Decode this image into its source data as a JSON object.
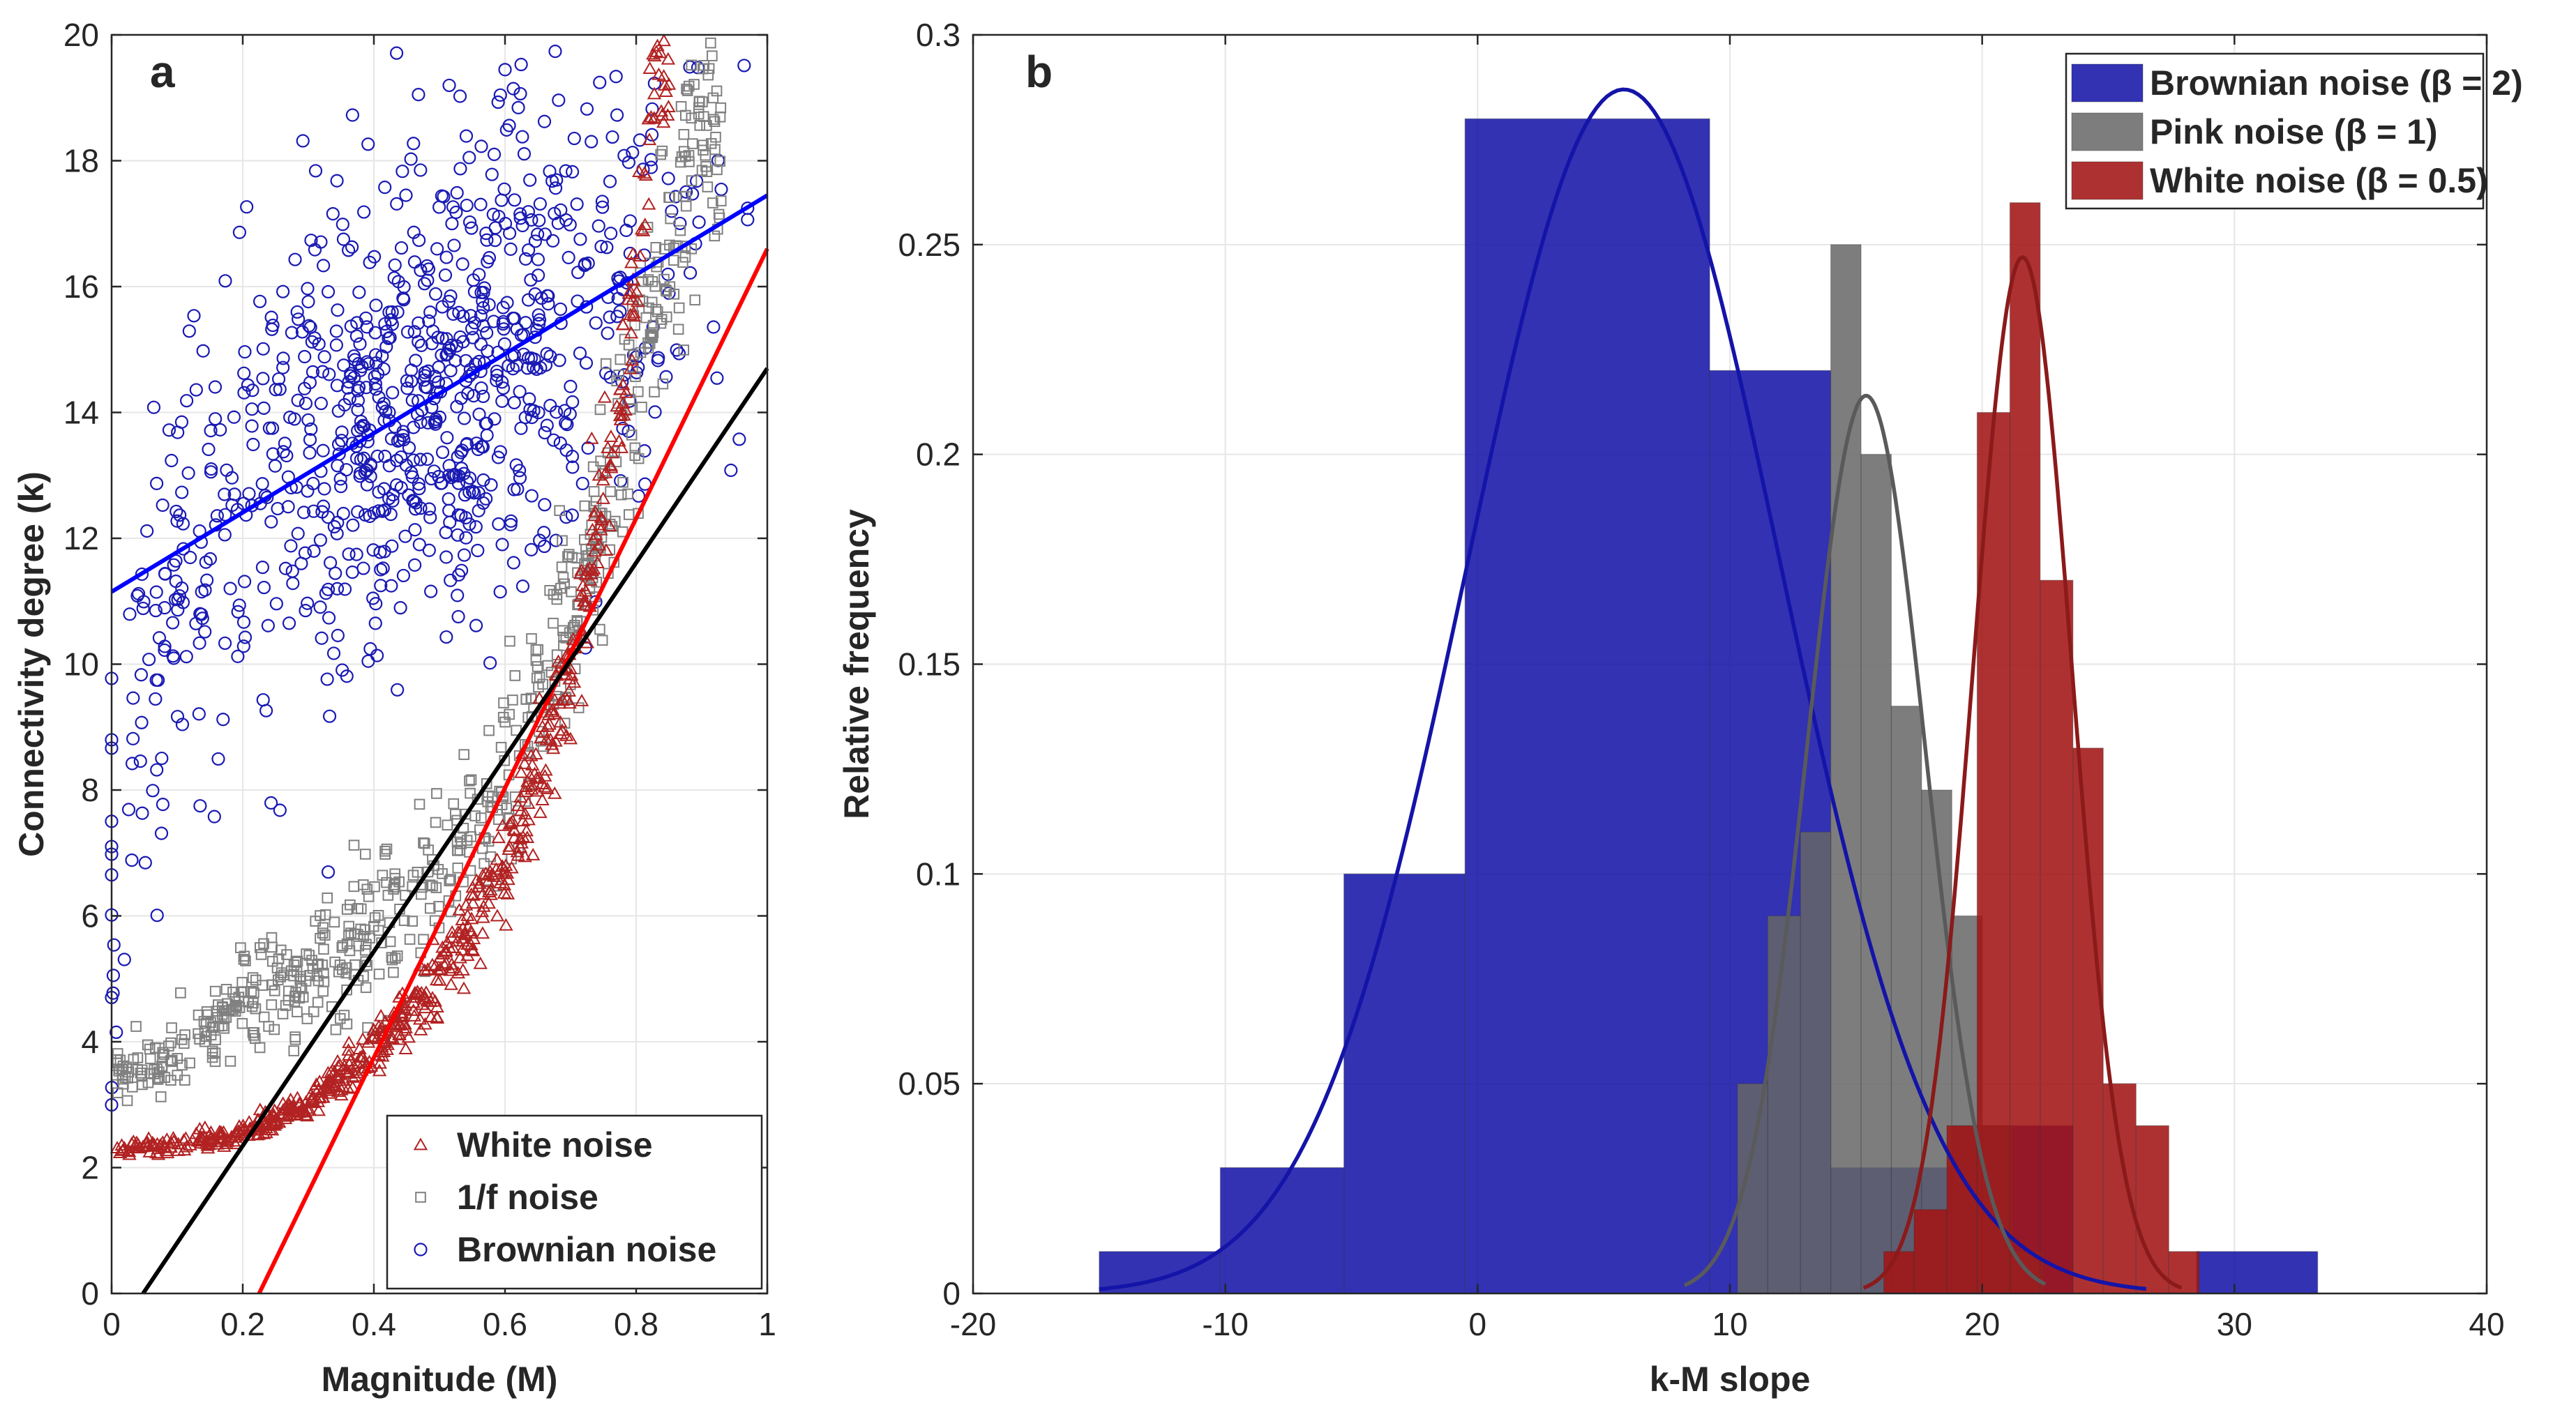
{
  "chart_data": [
    {
      "type": "scatter",
      "panel_label": "a",
      "xlabel": "Magnitude (M)",
      "ylabel": "Connectivity degree (k)",
      "xlim": [
        0,
        1
      ],
      "ylim": [
        0,
        20
      ],
      "x_ticks": [
        0,
        0.2,
        0.4,
        0.6,
        0.8,
        1
      ],
      "y_ticks": [
        0,
        2,
        4,
        6,
        8,
        10,
        12,
        14,
        16,
        18,
        20
      ],
      "x_tick_labels": [
        "0",
        "0.2",
        "0.4",
        "0.6",
        "0.8",
        "1"
      ],
      "y_tick_labels": [
        "0",
        "2",
        "4",
        "6",
        "8",
        "10",
        "12",
        "14",
        "16",
        "18",
        "20"
      ],
      "grid": true,
      "legend_position": "bottom-right",
      "series": [
        {
          "name": "White noise",
          "marker": "triangle",
          "color": "#b22222",
          "curve": "k = 2.3 + 8*M^3 (approx. envelope)",
          "x_range": [
            0,
            0.85
          ],
          "approx_points": [
            [
              0.0,
              2.3
            ],
            [
              0.1,
              2.35
            ],
            [
              0.2,
              2.55
            ],
            [
              0.3,
              3.0
            ],
            [
              0.4,
              3.9
            ],
            [
              0.5,
              5.0
            ],
            [
              0.6,
              6.8
            ],
            [
              0.7,
              9.8
            ],
            [
              0.75,
              12.5
            ],
            [
              0.8,
              16.0
            ],
            [
              0.83,
              19.5
            ]
          ]
        },
        {
          "name": "1/f noise",
          "marker": "square",
          "color": "#808080",
          "x_range": [
            0,
            0.93
          ],
          "approx_points": [
            [
              0.0,
              3.4
            ],
            [
              0.1,
              3.8
            ],
            [
              0.2,
              4.6
            ],
            [
              0.3,
              5.1
            ],
            [
              0.4,
              5.9
            ],
            [
              0.5,
              6.8
            ],
            [
              0.6,
              8.2
            ],
            [
              0.7,
              10.8
            ],
            [
              0.8,
              14.5
            ],
            [
              0.9,
              18.5
            ]
          ]
        },
        {
          "name": "Brownian noise",
          "marker": "circle",
          "color": "#1a1ab4",
          "x_range": [
            0,
            0.97
          ],
          "approx_points": [
            [
              0.0,
              5.5
            ],
            [
              0.02,
              7.5
            ],
            [
              0.05,
              9.5
            ],
            [
              0.1,
              11.5
            ],
            [
              0.2,
              12.5
            ],
            [
              0.3,
              13.5
            ],
            [
              0.4,
              14.0
            ],
            [
              0.5,
              14.5
            ],
            [
              0.6,
              15.0
            ],
            [
              0.7,
              15.5
            ],
            [
              0.8,
              16.0
            ],
            [
              0.9,
              16.5
            ]
          ]
        }
      ],
      "fit_lines": [
        {
          "series": "Brownian noise",
          "color": "#0000ff",
          "points": [
            [
              0,
              11.15
            ],
            [
              1,
              17.45
            ]
          ]
        },
        {
          "series": "White noise",
          "color": "#ff0000",
          "points": [
            [
              0.225,
              0
            ],
            [
              1,
              16.6
            ]
          ]
        },
        {
          "series": "1/f noise",
          "color": "#000000",
          "points": [
            [
              0.048,
              0
            ],
            [
              1,
              14.7
            ]
          ]
        }
      ]
    },
    {
      "type": "histogram",
      "panel_label": "b",
      "xlabel": "k-M slope",
      "ylabel": "Relative frequency",
      "xlim": [
        -20,
        40
      ],
      "ylim": [
        0,
        0.3
      ],
      "x_ticks": [
        -20,
        -10,
        0,
        10,
        20,
        30,
        40
      ],
      "y_ticks": [
        0,
        0.05,
        0.1,
        0.15,
        0.2,
        0.25,
        0.3
      ],
      "x_tick_labels": [
        "-20",
        "-10",
        "0",
        "10",
        "20",
        "30",
        "40"
      ],
      "y_tick_labels": [
        "0",
        "0.05",
        "0.1",
        "0.15",
        "0.2",
        "0.25",
        "0.3"
      ],
      "grid": true,
      "legend_position": "top-right",
      "series": [
        {
          "name": "Brownian noise (β = 2)",
          "color": "#1414a8",
          "opacity": 0.87,
          "bins": [
            {
              "x0": -15,
              "x1": -10.2,
              "value": 0.01
            },
            {
              "x0": -10.2,
              "x1": -5.3,
              "value": 0.03
            },
            {
              "x0": -5.3,
              "x1": -0.5,
              "value": 0.1
            },
            {
              "x0": -0.5,
              "x1": 9.2,
              "value": 0.28
            },
            {
              "x0": 9.2,
              "x1": 14.0,
              "value": 0.22
            },
            {
              "x0": 14.0,
              "x1": 18.8,
              "value": 0.03
            },
            {
              "x0": 18.8,
              "x1": 23.6,
              "value": 0.04
            },
            {
              "x0": 28.5,
              "x1": 33.3,
              "value": 0.01
            }
          ],
          "fit": {
            "mean": 5.8,
            "std": 6.2,
            "peak": 0.287,
            "x_range": [
              -15,
              26.5
            ],
            "color": "#1414a8"
          }
        },
        {
          "name": "Pink noise (β = 1)",
          "color": "#666666",
          "opacity": 0.85,
          "bins": [
            {
              "x0": 10.3,
              "x1": 11.5,
              "value": 0.05
            },
            {
              "x0": 11.5,
              "x1": 12.8,
              "value": 0.09
            },
            {
              "x0": 12.8,
              "x1": 14.0,
              "value": 0.11
            },
            {
              "x0": 14.0,
              "x1": 15.2,
              "value": 0.25
            },
            {
              "x0": 15.2,
              "x1": 16.4,
              "value": 0.2
            },
            {
              "x0": 16.4,
              "x1": 17.6,
              "value": 0.14
            },
            {
              "x0": 17.6,
              "x1": 18.8,
              "value": 0.12
            },
            {
              "x0": 18.8,
              "x1": 20.0,
              "value": 0.09
            },
            {
              "x0": 20.0,
              "x1": 21.2,
              "value": 0.04
            },
            {
              "x0": 21.2,
              "x1": 22.4,
              "value": 0.01
            }
          ],
          "fit": {
            "mean": 15.4,
            "std": 2.35,
            "peak": 0.214,
            "x_range": [
              8.2,
              22.5
            ],
            "color": "#5a5a5a"
          }
        },
        {
          "name": "White noise (β = 0.5)",
          "color": "#a31414",
          "opacity": 0.88,
          "bins": [
            {
              "x0": 16.1,
              "x1": 17.3,
              "value": 0.01
            },
            {
              "x0": 17.3,
              "x1": 18.6,
              "value": 0.02
            },
            {
              "x0": 18.6,
              "x1": 19.8,
              "value": 0.04
            },
            {
              "x0": 19.8,
              "x1": 21.1,
              "value": 0.21
            },
            {
              "x0": 21.1,
              "x1": 22.3,
              "value": 0.26
            },
            {
              "x0": 22.3,
              "x1": 23.6,
              "value": 0.17
            },
            {
              "x0": 23.6,
              "x1": 24.8,
              "value": 0.13
            },
            {
              "x0": 24.8,
              "x1": 26.1,
              "value": 0.05
            },
            {
              "x0": 26.1,
              "x1": 27.4,
              "value": 0.04
            },
            {
              "x0": 27.4,
              "x1": 28.6,
              "value": 0.01
            }
          ],
          "fit": {
            "mean": 21.6,
            "std": 1.95,
            "peak": 0.247,
            "x_range": [
              15.3,
              27.9
            ],
            "color": "#8b1a1a"
          }
        }
      ]
    }
  ]
}
